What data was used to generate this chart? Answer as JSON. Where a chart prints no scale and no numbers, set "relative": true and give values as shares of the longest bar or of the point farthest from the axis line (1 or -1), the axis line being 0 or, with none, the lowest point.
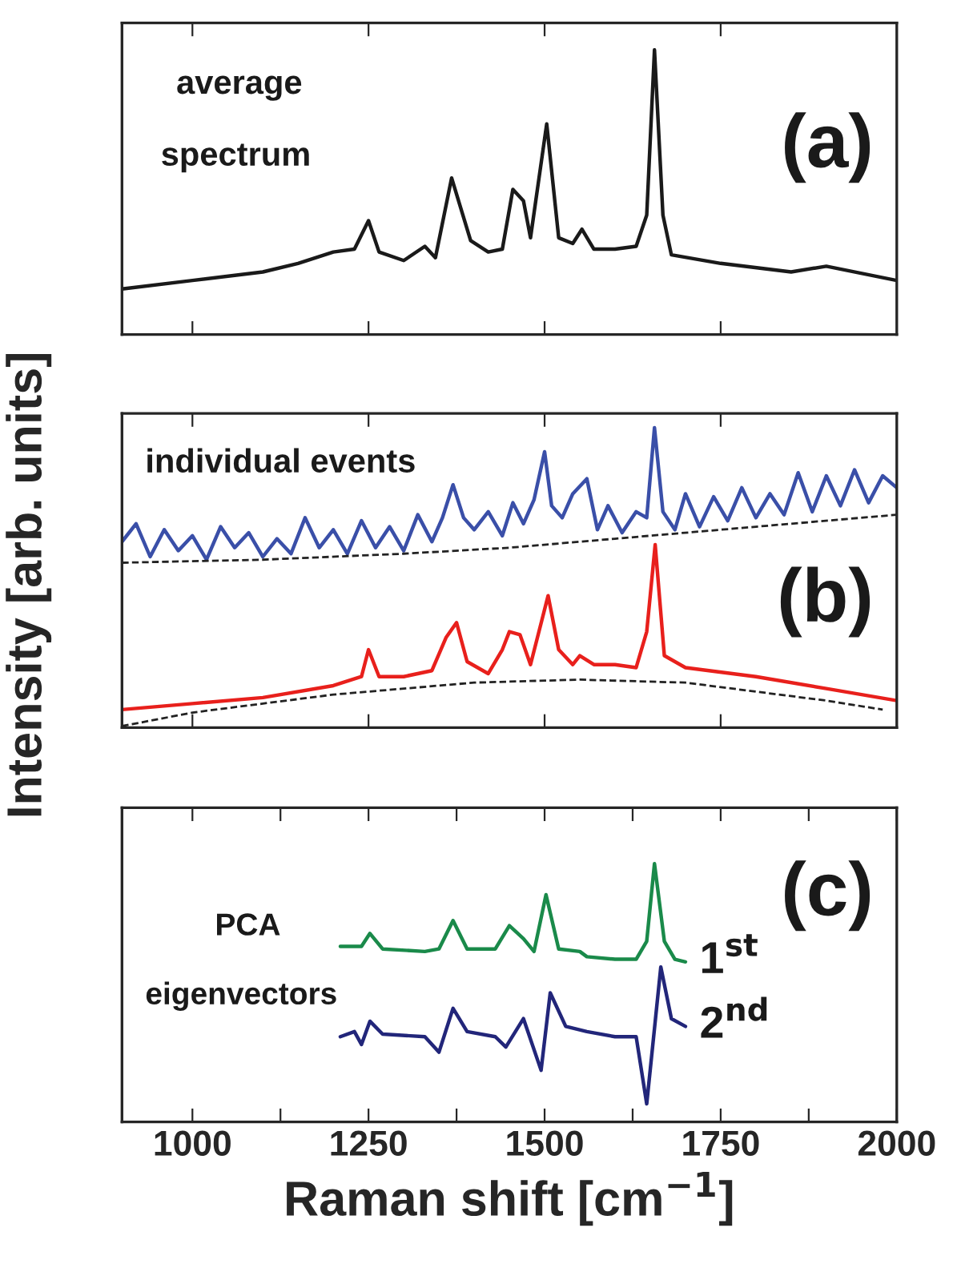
{
  "chart_data": [
    {
      "type": "line",
      "relative": true,
      "xlim": [
        900,
        2000
      ],
      "xticks": [
        {
          "value": 1000,
          "label": null
        },
        {
          "value": 1250,
          "label": null
        },
        {
          "value": 1500,
          "label": null
        },
        {
          "value": 1750,
          "label": null
        }
      ],
      "tick_labels": false,
      "grid": false,
      "legend": false,
      "annotations": [
        "average",
        "spectrum",
        "(a)"
      ],
      "series": [
        {
          "color": "#1a1a1a",
          "x": [
            900,
            1000,
            1100,
            1150,
            1200,
            1230,
            1250,
            1265,
            1300,
            1330,
            1345,
            1368,
            1395,
            1420,
            1440,
            1455,
            1470,
            1480,
            1503,
            1520,
            1540,
            1553,
            1570,
            1600,
            1630,
            1645,
            1656,
            1668,
            1680,
            1750,
            1850,
            1900,
            2000
          ],
          "values": [
            0.16,
            0.19,
            0.22,
            0.25,
            0.29,
            0.3,
            0.4,
            0.29,
            0.26,
            0.31,
            0.27,
            0.55,
            0.33,
            0.29,
            0.3,
            0.51,
            0.47,
            0.34,
            0.74,
            0.34,
            0.32,
            0.37,
            0.3,
            0.3,
            0.31,
            0.42,
            1.0,
            0.42,
            0.28,
            0.25,
            0.22,
            0.24,
            0.19
          ]
        }
      ]
    },
    {
      "type": "line",
      "relative": true,
      "xlim": [
        900,
        2000
      ],
      "xticks": [
        {
          "value": 1000,
          "label": null
        },
        {
          "value": 1250,
          "label": null
        },
        {
          "value": 1500,
          "label": null
        },
        {
          "value": 1750,
          "label": null
        }
      ],
      "tick_labels": false,
      "grid": false,
      "legend": false,
      "ylabel": "Intensity [arb. units]",
      "annotations": [
        "individual events",
        "(b)"
      ],
      "series": [
        {
          "color": "#3a4fa8",
          "x": [
            900,
            920,
            940,
            960,
            980,
            1000,
            1020,
            1040,
            1060,
            1080,
            1100,
            1120,
            1140,
            1160,
            1180,
            1200,
            1220,
            1240,
            1260,
            1280,
            1300,
            1320,
            1340,
            1355,
            1370,
            1385,
            1400,
            1420,
            1440,
            1455,
            1470,
            1485,
            1500,
            1510,
            1525,
            1540,
            1560,
            1575,
            1590,
            1610,
            1630,
            1645,
            1656,
            1668,
            1685,
            1700,
            1720,
            1740,
            1760,
            1780,
            1800,
            1820,
            1840,
            1860,
            1880,
            1900,
            1920,
            1940,
            1960,
            1980,
            2000
          ],
          "values": [
            0.62,
            0.68,
            0.57,
            0.66,
            0.59,
            0.64,
            0.56,
            0.67,
            0.6,
            0.65,
            0.57,
            0.63,
            0.58,
            0.7,
            0.6,
            0.66,
            0.58,
            0.69,
            0.6,
            0.67,
            0.59,
            0.71,
            0.62,
            0.7,
            0.81,
            0.7,
            0.66,
            0.72,
            0.64,
            0.75,
            0.68,
            0.76,
            0.92,
            0.74,
            0.7,
            0.78,
            0.83,
            0.66,
            0.74,
            0.65,
            0.72,
            0.7,
            1.0,
            0.72,
            0.66,
            0.78,
            0.67,
            0.77,
            0.69,
            0.8,
            0.7,
            0.78,
            0.71,
            0.85,
            0.72,
            0.84,
            0.74,
            0.86,
            0.75,
            0.84,
            0.8
          ]
        },
        {
          "color": "#222222",
          "line_style": "dashed",
          "x": [
            900,
            1100,
            1300,
            1450,
            1600,
            1800,
            2000
          ],
          "values": [
            0.55,
            0.56,
            0.58,
            0.6,
            0.63,
            0.67,
            0.71
          ]
        },
        {
          "color": "#e8201c",
          "x": [
            900,
            1000,
            1100,
            1200,
            1240,
            1250,
            1265,
            1300,
            1340,
            1360,
            1375,
            1390,
            1420,
            1440,
            1450,
            1465,
            1480,
            1505,
            1520,
            1540,
            1550,
            1570,
            1600,
            1630,
            1645,
            1657,
            1670,
            1700,
            1800,
            1900,
            2000
          ],
          "values": [
            0.06,
            0.08,
            0.1,
            0.14,
            0.17,
            0.26,
            0.17,
            0.17,
            0.19,
            0.3,
            0.35,
            0.22,
            0.18,
            0.26,
            0.32,
            0.31,
            0.21,
            0.44,
            0.26,
            0.21,
            0.24,
            0.21,
            0.21,
            0.2,
            0.32,
            0.61,
            0.24,
            0.2,
            0.17,
            0.13,
            0.09
          ]
        },
        {
          "color": "#222222",
          "line_style": "dashed",
          "x": [
            900,
            1000,
            1200,
            1400,
            1550,
            1700,
            1800,
            1900,
            1980
          ],
          "values": [
            0.005,
            0.05,
            0.11,
            0.15,
            0.16,
            0.15,
            0.12,
            0.09,
            0.06
          ]
        }
      ]
    },
    {
      "type": "line",
      "relative": true,
      "xlim": [
        900,
        2000
      ],
      "xticks": [
        1000,
        {
          "value": 1125,
          "label": null
        },
        1250,
        {
          "value": 1375,
          "label": null
        },
        1500,
        {
          "value": 1625,
          "label": null
        },
        1750,
        {
          "value": 1875,
          "label": null
        },
        2000
      ],
      "tick_labels": "x",
      "grid": false,
      "legend": false,
      "xlabel": "Raman shift [cm$^{−1}$]",
      "annotations": [
        "PCA",
        "eigenvectors",
        "(c)"
      ],
      "series": [
        {
          "name": "1$^{st}$",
          "color": "#1a8a4a",
          "x": [
            1210,
            1240,
            1252,
            1270,
            1330,
            1350,
            1370,
            1390,
            1430,
            1450,
            1470,
            1485,
            1502,
            1520,
            1550,
            1560,
            1600,
            1630,
            1645,
            1656,
            1670,
            1685,
            1700
          ],
          "values": [
            0.68,
            0.68,
            0.73,
            0.67,
            0.66,
            0.67,
            0.78,
            0.67,
            0.67,
            0.76,
            0.71,
            0.66,
            0.88,
            0.67,
            0.66,
            0.64,
            0.63,
            0.63,
            0.7,
            1.0,
            0.7,
            0.63,
            0.62
          ]
        },
        {
          "name": "2$^{nd}$",
          "color": "#22267a",
          "x": [
            1210,
            1230,
            1240,
            1252,
            1270,
            1330,
            1350,
            1370,
            1390,
            1430,
            1445,
            1470,
            1495,
            1508,
            1530,
            1560,
            1600,
            1630,
            1645,
            1665,
            1680,
            1700
          ],
          "values": [
            0.33,
            0.35,
            0.3,
            0.39,
            0.34,
            0.33,
            0.27,
            0.44,
            0.35,
            0.33,
            0.29,
            0.4,
            0.2,
            0.5,
            0.37,
            0.35,
            0.33,
            0.33,
            0.07,
            0.6,
            0.4,
            0.37
          ]
        }
      ]
    }
  ]
}
